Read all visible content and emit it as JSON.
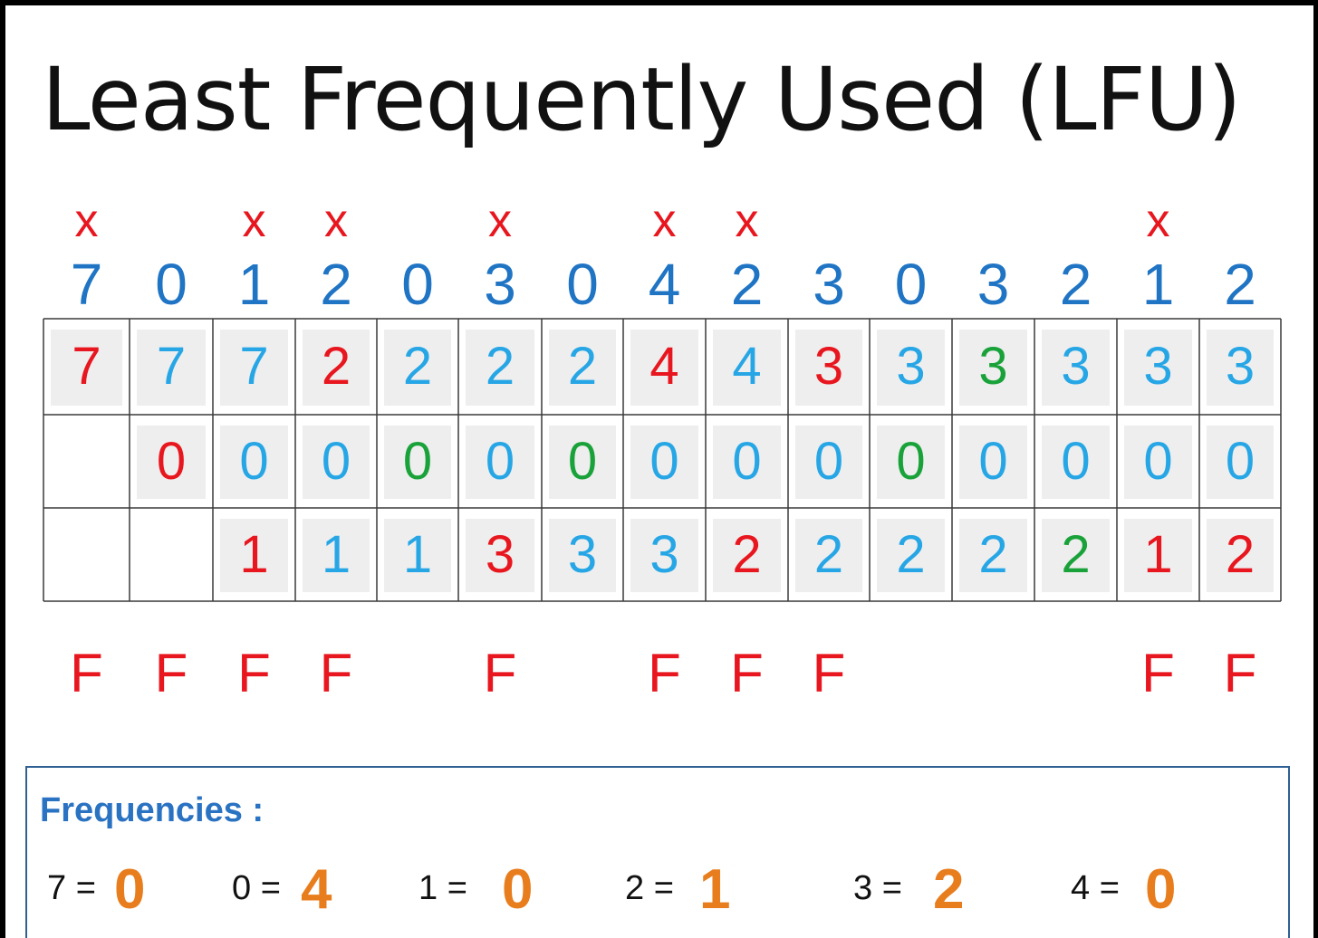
{
  "title": "Least Frequently Used (LFU)",
  "reference_string": [
    "7",
    "0",
    "1",
    "2",
    "0",
    "3",
    "0",
    "4",
    "2",
    "3",
    "0",
    "3",
    "2",
    "1",
    "2"
  ],
  "replacement_marks": [
    "x",
    "",
    "x",
    "x",
    "",
    "x",
    "",
    "x",
    "x",
    "",
    "",
    "",
    "",
    "x",
    ""
  ],
  "frames": [
    [
      "7",
      "7",
      "7",
      "2",
      "2",
      "2",
      "2",
      "4",
      "4",
      "3",
      "3",
      "3",
      "3",
      "3",
      "3"
    ],
    [
      "",
      "0",
      "0",
      "0",
      "0",
      "0",
      "0",
      "0",
      "0",
      "0",
      "0",
      "0",
      "0",
      "0",
      "0"
    ],
    [
      "",
      "",
      "1",
      "1",
      "1",
      "3",
      "3",
      "3",
      "2",
      "2",
      "2",
      "2",
      "2",
      "1",
      "2"
    ]
  ],
  "frame_colors": [
    [
      "red",
      "cyan",
      "cyan",
      "red",
      "cyan",
      "cyan",
      "cyan",
      "red",
      "cyan",
      "red",
      "cyan",
      "green",
      "cyan",
      "cyan",
      "cyan"
    ],
    [
      "",
      "red",
      "cyan",
      "cyan",
      "green",
      "cyan",
      "green",
      "cyan",
      "cyan",
      "cyan",
      "green",
      "cyan",
      "cyan",
      "cyan",
      "cyan"
    ],
    [
      "",
      "",
      "red",
      "cyan",
      "cyan",
      "red",
      "cyan",
      "cyan",
      "red",
      "cyan",
      "cyan",
      "cyan",
      "green",
      "red",
      "red"
    ]
  ],
  "faults": [
    "F",
    "F",
    "F",
    "F",
    "",
    "F",
    "",
    "F",
    "F",
    "F",
    "",
    "",
    "",
    "F",
    "F"
  ],
  "frequencies": {
    "label": "Frequencies :",
    "items": [
      {
        "page": "7 =",
        "count": "0"
      },
      {
        "page": "0 =",
        "count": "4"
      },
      {
        "page": "1 =",
        "count": "0"
      },
      {
        "page": "2 =",
        "count": "1"
      },
      {
        "page": "3 =",
        "count": "2"
      },
      {
        "page": "4 =",
        "count": "0"
      }
    ]
  },
  "colors": {
    "red": "#e8161e",
    "cyan": "#27a6e6",
    "green": "#1aa23a",
    "blue": "#1f74c4",
    "orange": "#e87d1e"
  }
}
